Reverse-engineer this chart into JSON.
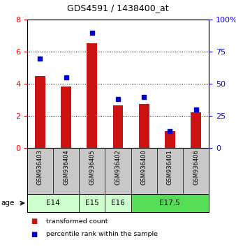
{
  "title": "GDS4591 / 1438400_at",
  "samples": [
    "GSM936403",
    "GSM936404",
    "GSM936405",
    "GSM936402",
    "GSM936400",
    "GSM936401",
    "GSM936406"
  ],
  "transformed_count": [
    4.5,
    3.85,
    6.55,
    2.65,
    2.75,
    1.05,
    2.25
  ],
  "percentile_rank": [
    70,
    55,
    90,
    38,
    40,
    13,
    30
  ],
  "age_groups": [
    {
      "label": "E14",
      "start": 0,
      "end": 2,
      "color": "#ccffcc"
    },
    {
      "label": "E15",
      "start": 2,
      "end": 3,
      "color": "#ccffcc"
    },
    {
      "label": "E16",
      "start": 3,
      "end": 4,
      "color": "#ccffcc"
    },
    {
      "label": "E17.5",
      "start": 4,
      "end": 7,
      "color": "#55dd55"
    }
  ],
  "bar_color": "#cc1111",
  "marker_color": "#0000cc",
  "left_ylim": [
    0,
    8
  ],
  "right_ylim": [
    0,
    100
  ],
  "left_yticks": [
    0,
    2,
    4,
    6,
    8
  ],
  "right_yticks": [
    0,
    25,
    50,
    75,
    100
  ],
  "right_yticklabels": [
    "0",
    "25",
    "50",
    "75",
    "100%"
  ],
  "bg_color": "#ffffff",
  "age_label": "age",
  "legend_items": [
    {
      "color": "#cc1111",
      "label": "transformed count"
    },
    {
      "color": "#0000cc",
      "label": "percentile rank within the sample"
    }
  ],
  "sample_label_bg": "#c8c8c8",
  "bar_width": 0.4
}
